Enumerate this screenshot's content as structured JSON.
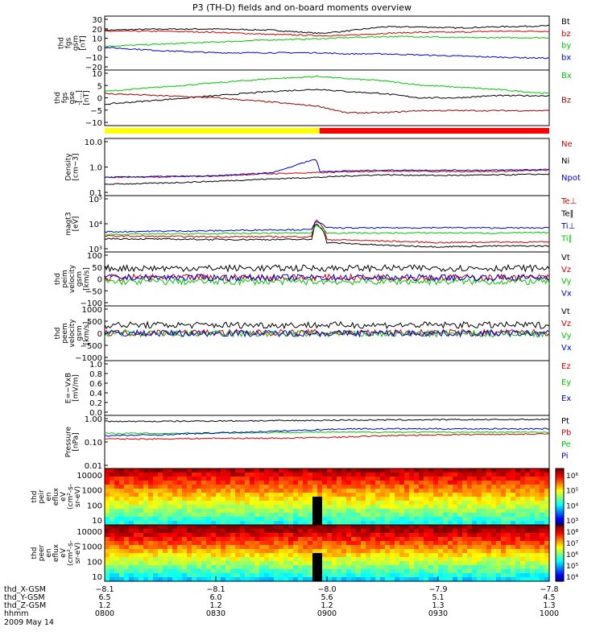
{
  "chart_data": {
    "type": "line",
    "title": "P3 (TH-D) fields and on-board moments overview",
    "panels": [
      {
        "ylabel": [
          "thd",
          "fgs",
          "gsm",
          "[nT]"
        ],
        "ticks": [
          "30",
          "20",
          "10",
          "0",
          "−10",
          "−20"
        ],
        "ylim": [
          -20,
          30
        ],
        "scale": "linear",
        "series": [
          {
            "name": "Bt",
            "color": "#000000",
            "x": [
              800,
              815,
              830,
              845,
              858,
              905,
              915,
              925,
              935,
              945,
              1000
            ],
            "y": [
              17,
              18,
              18,
              17,
              14,
              16,
              20,
              20,
              19,
              20,
              21
            ]
          },
          {
            "name": "bz",
            "color": "#cc0000",
            "x": [
              800,
              815,
              830,
              845,
              858,
              905,
              915,
              925,
              935,
              945,
              1000
            ],
            "y": [
              16,
              16,
              15,
              13,
              12,
              12,
              14,
              15,
              15,
              16,
              16
            ]
          },
          {
            "name": "by",
            "color": "#00c800",
            "x": [
              800,
              815,
              830,
              845,
              858,
              905,
              915,
              925,
              935,
              945,
              1000
            ],
            "y": [
              2,
              4,
              6,
              8,
              9,
              10,
              11,
              11,
              10,
              10,
              10
            ]
          },
          {
            "name": "bx",
            "color": "#0000cc",
            "x": [
              800,
              815,
              830,
              845,
              858,
              905,
              915,
              925,
              935,
              945,
              1000
            ],
            "y": [
              1,
              -2,
              -4,
              -4,
              -4,
              -5,
              -5,
              -6,
              -7,
              -8,
              -9
            ]
          }
        ]
      },
      {
        "ylabel": [
          "thd",
          "fgs",
          "gse",
          "-[...]",
          "[nT]"
        ],
        "ticks": [
          "10",
          "5",
          "0",
          "−5",
          "−10"
        ],
        "ylim": [
          -13,
          13
        ],
        "scale": "linear",
        "series": [
          {
            "name": "Bx",
            "color": "#00c800",
            "x": [
              800,
              815,
              830,
              845,
              858,
              905,
              915,
              925,
              935,
              945,
              1000
            ],
            "y": [
              3,
              5,
              7,
              9,
              10,
              9,
              8,
              6,
              5,
              4,
              2
            ]
          },
          {
            "name": "",
            "color": "#000000",
            "x": [
              800,
              815,
              830,
              845,
              858,
              905,
              915,
              925,
              935,
              945,
              1000
            ],
            "y": [
              -3,
              -1,
              1,
              3,
              4,
              3,
              2,
              0,
              0,
              1,
              1
            ]
          },
          {
            "name": "Bz",
            "color": "#990000",
            "x": [
              800,
              815,
              830,
              845,
              858,
              905,
              915,
              925,
              935,
              945,
              1000
            ],
            "y": [
              2,
              1,
              0,
              -2,
              -4,
              -7,
              -7,
              -6,
              -6,
              -6,
              -6
            ]
          }
        ]
      },
      {
        "ylabel": [
          "Density",
          "[cm−3]"
        ],
        "ticks": [
          "10.0",
          "1.0",
          "0.1"
        ],
        "ylim": [
          0.06,
          15
        ],
        "scale": "log",
        "series": [
          {
            "name": "Ne",
            "color": "#cc0000",
            "x": [
              800,
              815,
              830,
              845,
              857,
              858,
              905,
              915,
              930,
              945,
              1000
            ],
            "y": [
              0.35,
              0.36,
              0.4,
              0.5,
              0.55,
              0.55,
              0.6,
              0.65,
              0.62,
              0.62,
              0.7
            ]
          },
          {
            "name": "Ni",
            "color": "#000000",
            "x": [
              800,
              815,
              830,
              845,
              857,
              858,
              905,
              915,
              930,
              945,
              1000
            ],
            "y": [
              0.18,
              0.2,
              0.24,
              0.3,
              0.35,
              0.35,
              0.4,
              0.45,
              0.42,
              0.44,
              0.48
            ]
          },
          {
            "name": "Npot",
            "color": "#0000cc",
            "x": [
              800,
              815,
              830,
              845,
              850,
              857,
              858,
              905,
              915,
              930,
              945,
              1000
            ],
            "y": [
              0.35,
              0.38,
              0.4,
              0.55,
              0.9,
              2.0,
              0.6,
              0.65,
              0.7,
              0.7,
              0.7,
              0.75
            ]
          }
        ]
      },
      {
        "ylabel": [
          "magt3",
          "[eV]"
        ],
        "ticks": [
          "10⁵",
          "10⁴",
          "10³"
        ],
        "ylim": [
          900,
          110000
        ],
        "scale": "log",
        "series": [
          {
            "name": "Te⊥",
            "color": "#cc0000",
            "x": [
              800,
              815,
              830,
              845,
              856,
              857,
              900,
              915,
              930,
              945,
              1000
            ],
            "y": [
              3500,
              3400,
              3300,
              3300,
              3300,
              15000,
              2600,
              2300,
              2000,
              2100,
              2100
            ]
          },
          {
            "name": "Te∥",
            "color": "#000000",
            "x": [
              800,
              815,
              830,
              845,
              856,
              857,
              900,
              915,
              930,
              945,
              1000
            ],
            "y": [
              2800,
              2700,
              2600,
              2600,
              2600,
              11000,
              2000,
              1600,
              1400,
              1500,
              1500
            ]
          },
          {
            "name": "Ti⊥",
            "color": "#0000cc",
            "x": [
              800,
              815,
              830,
              845,
              856,
              857,
              900,
              915,
              930,
              945,
              1000
            ],
            "y": [
              5000,
              5300,
              5500,
              6000,
              6000,
              13000,
              7000,
              7000,
              7200,
              7000,
              7000
            ]
          },
          {
            "name": "Ti∥",
            "color": "#00c800",
            "x": [
              800,
              815,
              830,
              845,
              856,
              857,
              900,
              915,
              930,
              945,
              1000
            ],
            "y": [
              4000,
              4200,
              4300,
              4500,
              4500,
              9000,
              4600,
              4500,
              4600,
              4500,
              4700
            ]
          }
        ]
      },
      {
        "ylabel": [
          "thd",
          "peim",
          "velocity",
          "gsm",
          "[km/s]"
        ],
        "ticks": [
          "100",
          "50",
          "0",
          "−50",
          "−100"
        ],
        "ylim": [
          -100,
          100
        ],
        "scale": "linear",
        "series": [
          {
            "name": "Vt",
            "color": "#000000",
            "x": [
              800,
              830,
              858,
              930,
              1000
            ],
            "y": [
              40,
              40,
              40,
              40,
              40
            ]
          },
          {
            "name": "Vz",
            "color": "#cc0000",
            "x": [
              800,
              830,
              858,
              930,
              1000
            ],
            "y": [
              5,
              5,
              5,
              5,
              5
            ]
          },
          {
            "name": "Vy",
            "color": "#00c800",
            "x": [
              800,
              830,
              858,
              930,
              1000
            ],
            "y": [
              -10,
              -10,
              -10,
              -10,
              -10
            ]
          },
          {
            "name": "Vx",
            "color": "#0000cc",
            "x": [
              800,
              830,
              858,
              930,
              1000
            ],
            "y": [
              5,
              5,
              5,
              5,
              5
            ]
          }
        ]
      },
      {
        "ylabel": [
          "thd",
          "peem",
          "velocity",
          "gsm",
          "[km/s]"
        ],
        "ticks": [
          "1000",
          "500",
          "0",
          "−500",
          "−1000"
        ],
        "ylim": [
          -1000,
          1000
        ],
        "scale": "linear",
        "series": [
          {
            "name": "Vt",
            "color": "#000000",
            "x": [
              800,
              830,
              858,
              930,
              1000
            ],
            "y": [
              300,
              300,
              300,
              300,
              300
            ]
          },
          {
            "name": "Vz",
            "color": "#cc0000",
            "x": [
              800,
              830,
              858,
              930,
              1000
            ],
            "y": [
              20,
              20,
              20,
              20,
              20
            ]
          },
          {
            "name": "Vy",
            "color": "#00c800",
            "x": [
              800,
              830,
              858,
              930,
              1000
            ],
            "y": [
              -20,
              -20,
              -20,
              -20,
              -20
            ]
          },
          {
            "name": "Vx",
            "color": "#0000cc",
            "x": [
              800,
              830,
              858,
              930,
              1000
            ],
            "y": [
              0,
              0,
              0,
              0,
              0
            ]
          }
        ]
      },
      {
        "ylabel": [
          "E=−VxB",
          "[mV/m]"
        ],
        "ticks": [
          "1.0",
          "0.8",
          "0.6",
          "0.4",
          "0.2",
          "0.0"
        ],
        "ylim": [
          0,
          1
        ],
        "scale": "linear",
        "series": [
          {
            "name": "Ez",
            "color": "#cc0000",
            "x": [],
            "y": []
          },
          {
            "name": "Ey",
            "color": "#00c800",
            "x": [],
            "y": []
          },
          {
            "name": "Ex",
            "color": "#0000cc",
            "x": [],
            "y": []
          }
        ]
      },
      {
        "ylabel": [
          "Pressure",
          "[nPa]"
        ],
        "ticks": [
          "1.00",
          "0.10",
          "0.01"
        ],
        "ylim": [
          0.01,
          1.3
        ],
        "scale": "log",
        "series": [
          {
            "name": "Pt",
            "color": "#000000",
            "x": [
              800,
              815,
              830,
              845,
              858,
              905,
              915,
              930,
              945,
              1000
            ],
            "y": [
              0.75,
              0.75,
              0.78,
              0.8,
              0.82,
              0.85,
              0.85,
              0.87,
              0.88,
              0.9
            ]
          },
          {
            "name": "Pb",
            "color": "#cc0000",
            "x": [
              800,
              815,
              830,
              845,
              858,
              905,
              915,
              930,
              945,
              1000
            ],
            "y": [
              0.15,
              0.15,
              0.16,
              0.16,
              0.17,
              0.18,
              0.2,
              0.22,
              0.23,
              0.24
            ]
          },
          {
            "name": "Pe",
            "color": "#00c800",
            "x": [
              800,
              815,
              830,
              845,
              858,
              905,
              915,
              930,
              945,
              1000
            ],
            "y": [
              0.25,
              0.25,
              0.26,
              0.27,
              0.28,
              0.28,
              0.28,
              0.28,
              0.28,
              0.28
            ]
          },
          {
            "name": "Pi",
            "color": "#0000cc",
            "x": [
              800,
              815,
              830,
              845,
              858,
              905,
              915,
              930,
              945,
              1000
            ],
            "y": [
              0.2,
              0.22,
              0.26,
              0.3,
              0.35,
              0.38,
              0.38,
              0.38,
              0.38,
              0.38
            ]
          }
        ]
      }
    ],
    "spectrograms": [
      {
        "type": "heatmap",
        "ylabel": [
          "thd",
          "peir",
          "en",
          "eflux",
          "eV",
          "(cm²-s-",
          "sr-eV)"
        ],
        "ticks": [
          "10000",
          "1000",
          "100",
          "10"
        ],
        "colorbar_ticks": [
          "10⁶",
          "10⁵",
          "10⁴",
          "10³"
        ]
      },
      {
        "type": "heatmap",
        "ylabel": [
          "thd",
          "peer",
          "en",
          "eflux",
          "eV",
          "(cm²-s-",
          "sr-eV)"
        ],
        "ticks": [
          "10000",
          "1000",
          "100",
          "10"
        ],
        "colorbar_ticks": [
          "10⁸",
          "10⁷",
          "10⁶",
          "10⁵",
          "10⁴"
        ]
      }
    ],
    "mode_bar": [
      {
        "color": "#ffff00",
        "from": 800,
        "to": 858
      },
      {
        "color": "#ff0000",
        "from": 858,
        "to": 1000
      }
    ],
    "x_axis": {
      "hhmm": [
        "0800",
        "0830",
        "0900",
        "0930",
        "1000"
      ],
      "rows": [
        {
          "label": "thd_X-GSM",
          "values": [
            "−8.1",
            "−8.1",
            "−8.0",
            "−7.9",
            "−7.8"
          ]
        },
        {
          "label": "thd_Y-GSM",
          "values": [
            "6.5",
            "6.0",
            "5.6",
            "5.1",
            "4.5"
          ]
        },
        {
          "label": "thd_Z-GSM",
          "values": [
            "1.2",
            "1.2",
            "1.2",
            "1.3",
            "1.3"
          ]
        },
        {
          "label": "hhmm",
          "values": [
            "0800",
            "0830",
            "0900",
            "0930",
            "1000"
          ]
        }
      ],
      "date": "2009 May 14"
    }
  }
}
